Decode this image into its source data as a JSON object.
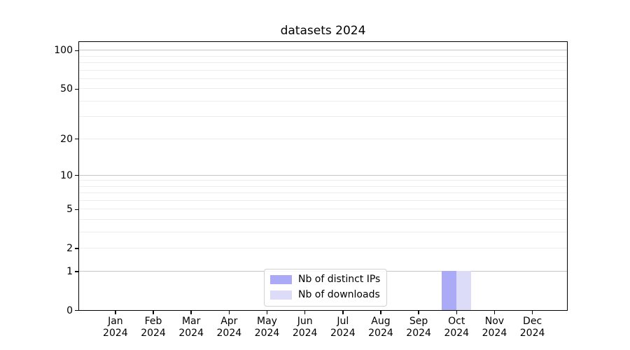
{
  "chart_data": {
    "type": "bar",
    "title": "datasets 2024",
    "xlabel": "",
    "ylabel": "",
    "categories": [
      "Jan 2024",
      "Feb 2024",
      "Mar 2024",
      "Apr 2024",
      "May 2024",
      "Jun 2024",
      "Jul 2024",
      "Aug 2024",
      "Sep 2024",
      "Oct 2024",
      "Nov 2024",
      "Dec 2024"
    ],
    "series": [
      {
        "name": "Nb of distinct IPs",
        "color": "#aaaaf6",
        "values": [
          0,
          0,
          0,
          0,
          0,
          0,
          0,
          0,
          0,
          1,
          0,
          0
        ]
      },
      {
        "name": "Nb of downloads",
        "color": "#dcdcf9",
        "values": [
          0,
          0,
          0,
          0,
          0,
          0,
          0,
          0,
          0,
          1,
          0,
          0
        ]
      }
    ],
    "yscale": "log1p",
    "ylim": [
      0,
      116
    ],
    "y_tick_labels": [
      0,
      1,
      2,
      5,
      10,
      20,
      50,
      100
    ],
    "y_major_grid": [
      1,
      10,
      100
    ],
    "y_minor_grid": [
      2,
      3,
      4,
      5,
      6,
      7,
      8,
      9,
      20,
      30,
      40,
      50,
      60,
      70,
      80,
      90
    ],
    "grid": true,
    "legend_position": "lower center",
    "colors": {
      "axis": "#000000",
      "major_grid": "#c6c6c6",
      "minor_grid": "#ededed",
      "background": "#ffffff"
    }
  }
}
